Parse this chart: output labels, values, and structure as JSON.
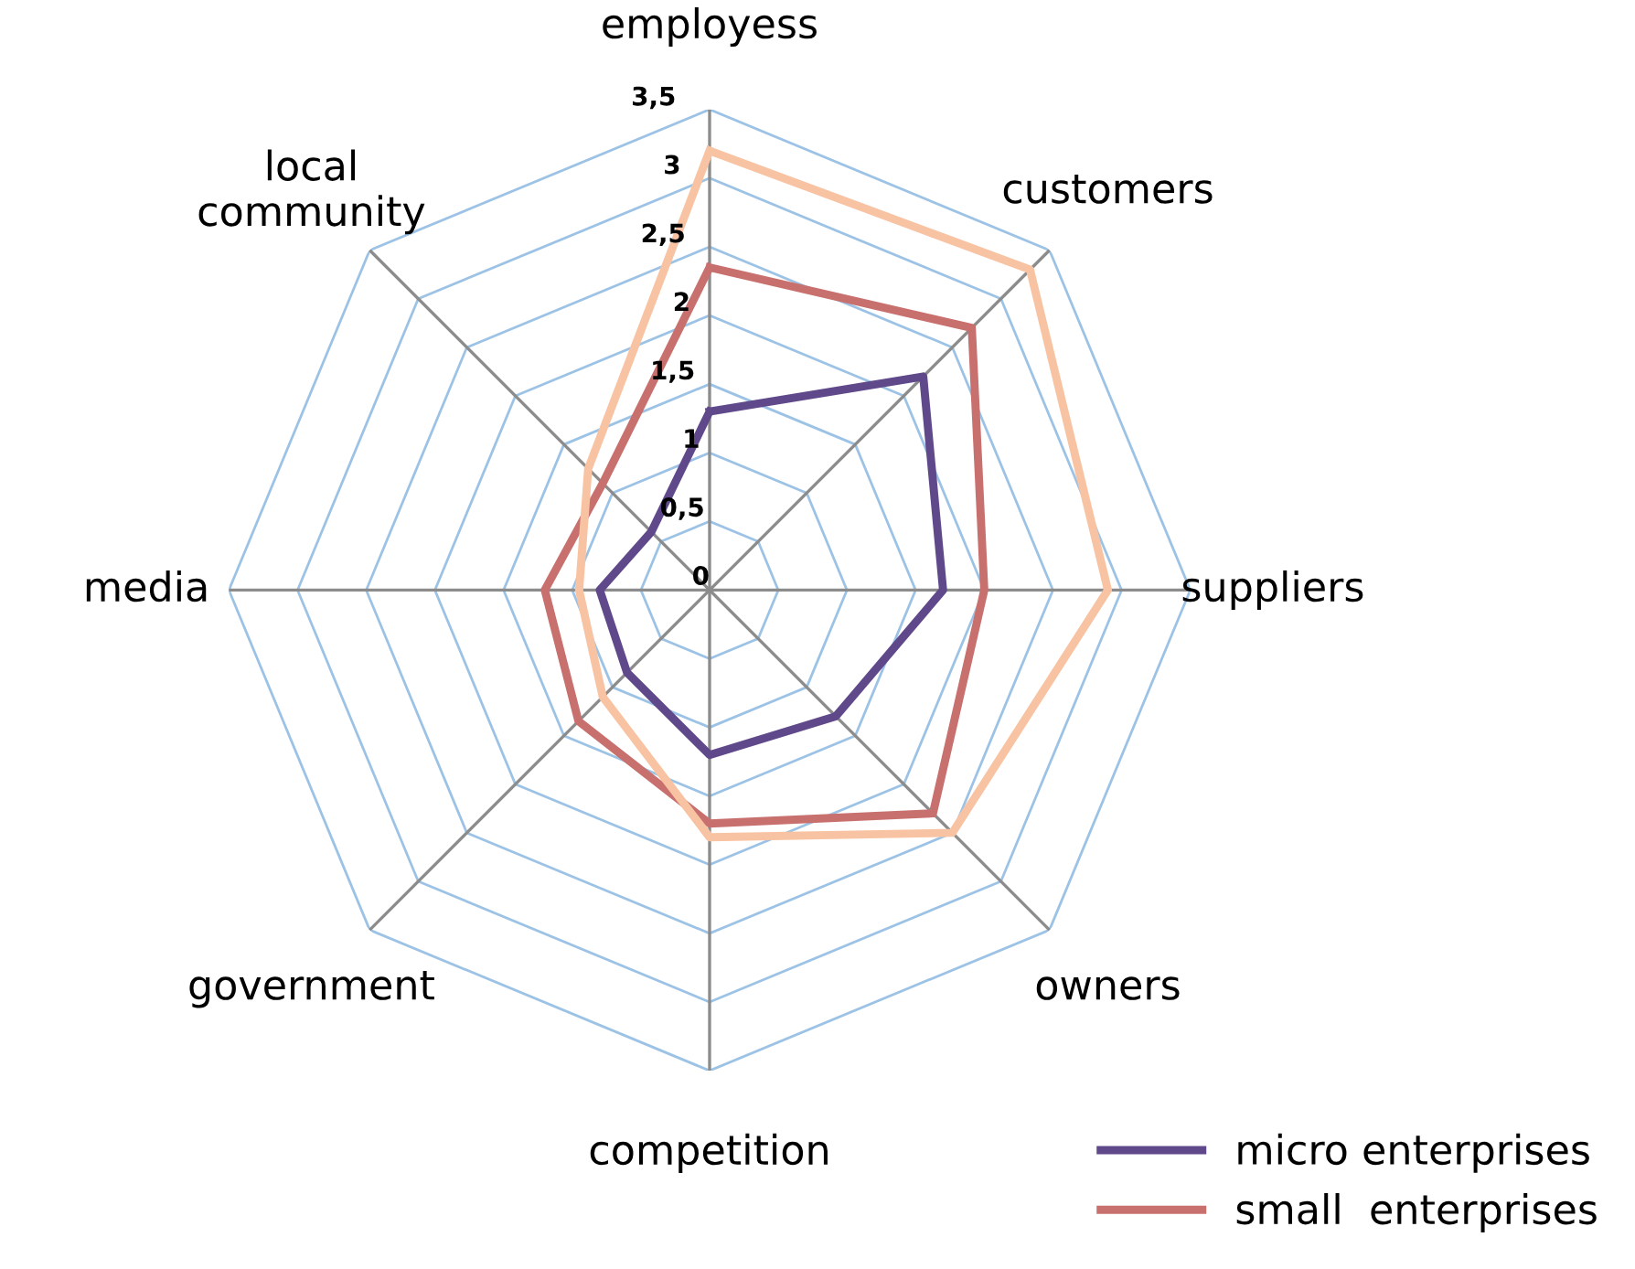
{
  "chart_data": {
    "type": "radar",
    "categories": [
      "employess",
      "customers",
      "suppliers",
      "owners",
      "competition",
      "government",
      "media",
      "local\ncommunity"
    ],
    "ylim": [
      0,
      3.5
    ],
    "yticks": [
      0,
      {
        "value": 0.5,
        "label": "0,5"
      },
      1,
      {
        "value": 1.5,
        "label": "1,5"
      },
      2,
      {
        "value": 2.5,
        "label": "2,5"
      },
      3,
      {
        "value": 3.5,
        "label": "3,5"
      }
    ],
    "grid": true,
    "legend": "bottom right",
    "series": [
      {
        "name": "micro enterprises",
        "color": "#60498a",
        "values": [
          1.3,
          2.2,
          1.7,
          1.3,
          1.2,
          0.85,
          0.8,
          0.6
        ]
      },
      {
        "name": "small  enterprises",
        "color": "#c8706e",
        "values": [
          2.35,
          2.7,
          2.0,
          2.3,
          1.7,
          1.35,
          1.2,
          1.1
        ]
      },
      {
        "color": "#f8c3a2",
        "values": [
          3.2,
          3.3,
          2.9,
          2.5,
          1.8,
          1.1,
          0.95,
          1.25
        ]
      }
    ]
  }
}
